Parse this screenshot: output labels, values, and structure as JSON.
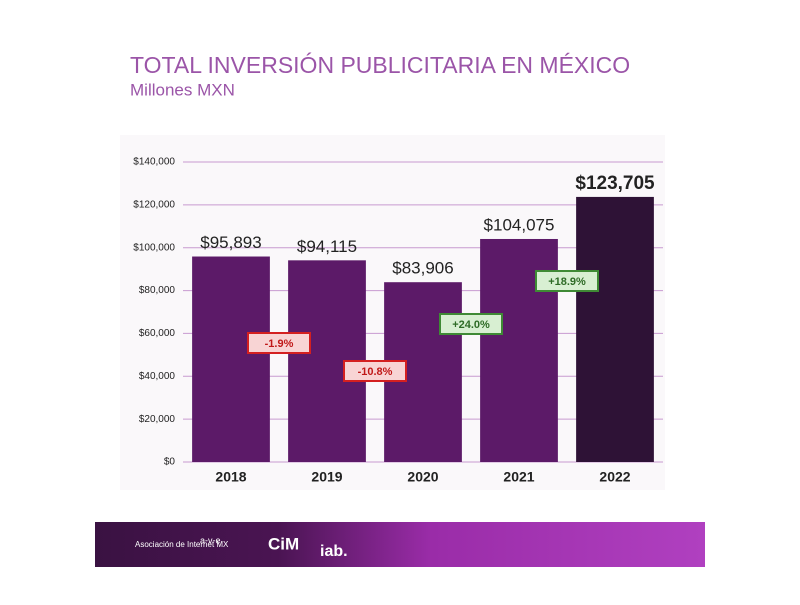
{
  "chart_data": {
    "type": "bar",
    "title": "TOTAL INVERSIÓN PUBLICITARIA EN MÉXICO",
    "subtitle": "Millones MXN",
    "categories": [
      "2018",
      "2019",
      "2020",
      "2021",
      "2022"
    ],
    "values": [
      95893,
      94115,
      83906,
      104075,
      123705
    ],
    "value_labels": [
      "$95,893",
      "$94,115",
      "$83,906",
      "$104,075",
      "$123,705"
    ],
    "colors": [
      "#5c1a68",
      "#5c1a68",
      "#5c1a68",
      "#5c1a68",
      "#2e1236"
    ],
    "ylim": [
      0,
      140000
    ],
    "yticks": [
      {
        "value": 0,
        "label": "$0"
      },
      {
        "value": 20000,
        "label": "$20,000"
      },
      {
        "value": 40000,
        "label": "$40,000"
      },
      {
        "value": 60000,
        "label": "$60,000"
      },
      {
        "value": 80000,
        "label": "$80,000"
      },
      {
        "value": 100000,
        "label": "$100,000"
      },
      {
        "value": 120000,
        "label": "$120,000"
      },
      {
        "value": 140000,
        "label": "$140,000"
      }
    ],
    "grid": true,
    "changes": {
      "values": [
        -1.9,
        -10.8,
        24.0,
        18.9
      ],
      "value_labels": [
        "-1.9%",
        "-10.8%",
        "+24.0%",
        "+18.9%"
      ]
    }
  },
  "footer": {
    "logos": [
      "Asociación de Internet MX",
      "a-v-e",
      "CiM",
      "iab."
    ]
  }
}
